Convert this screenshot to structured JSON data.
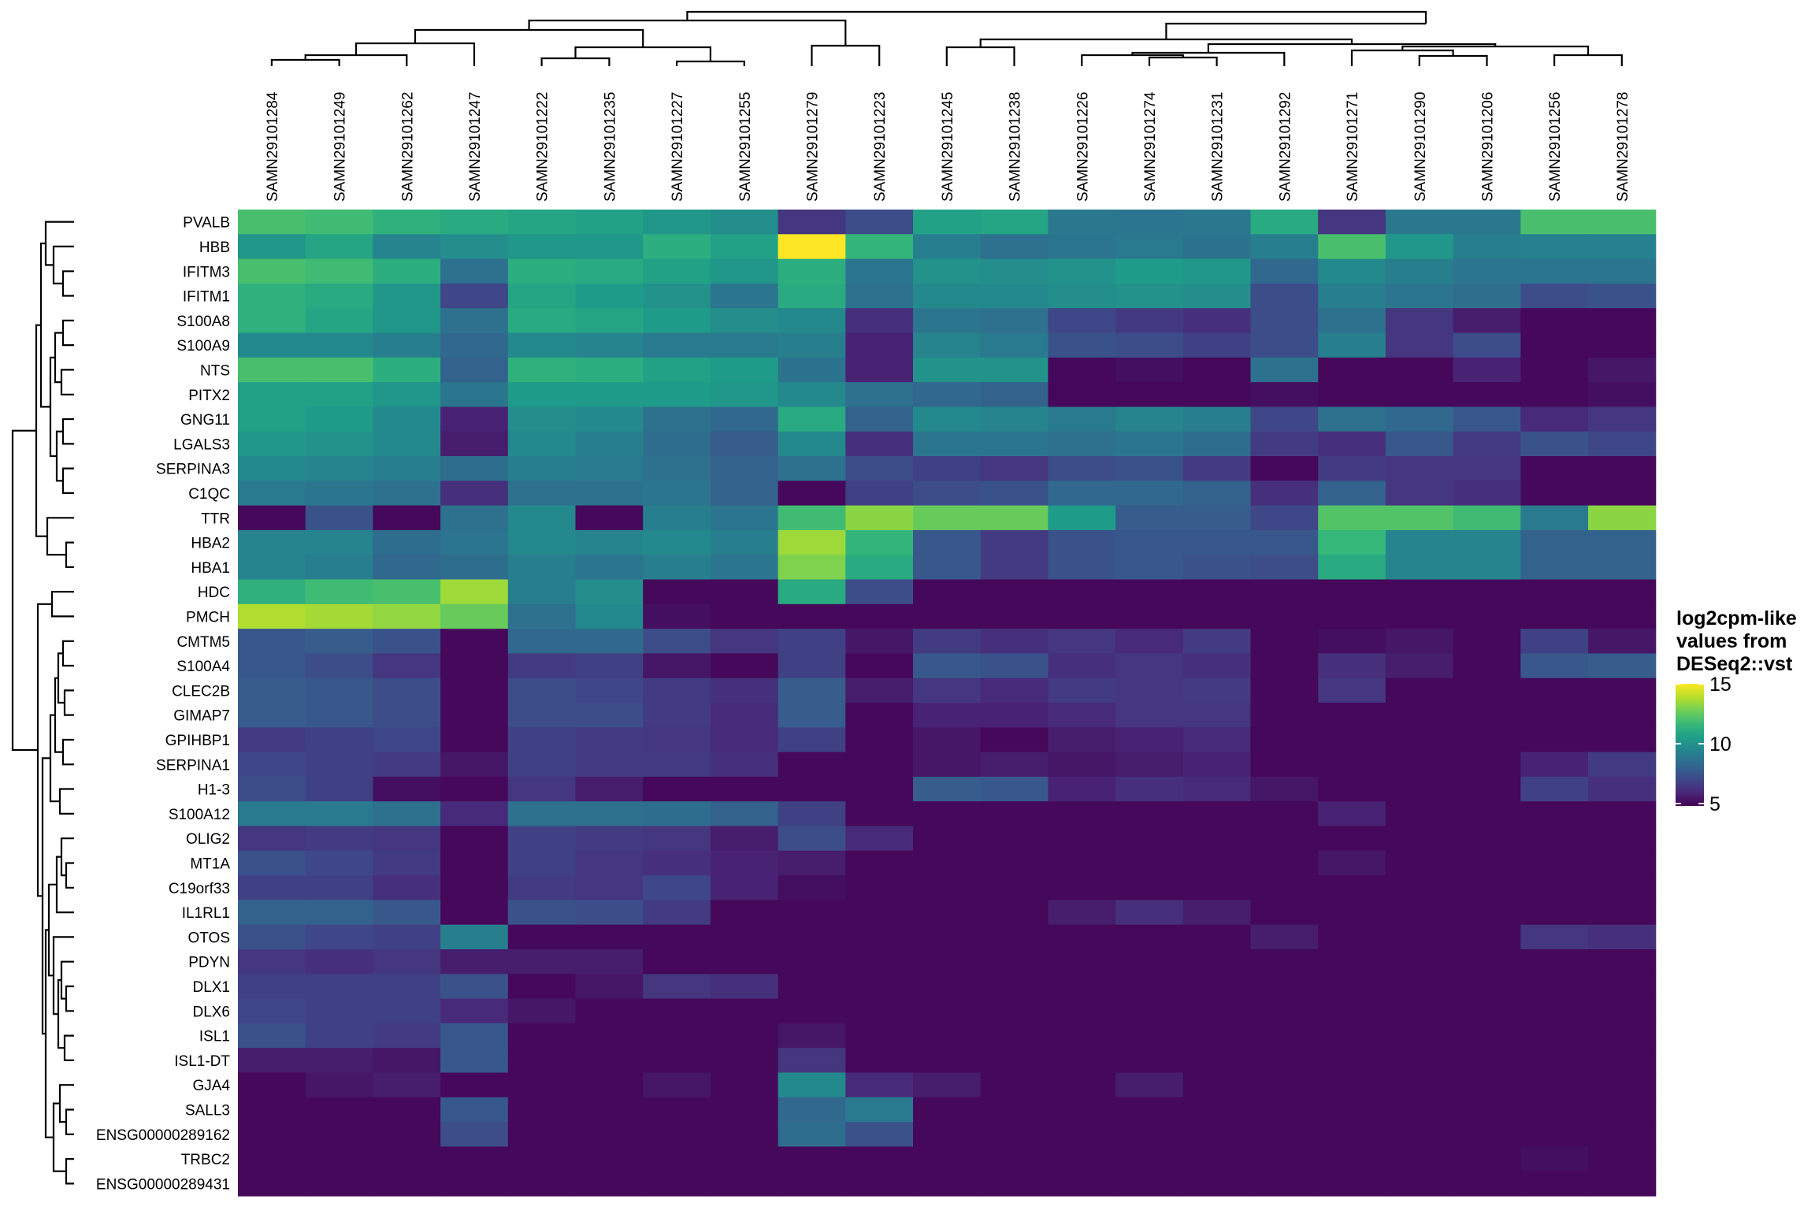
{
  "chart_data": {
    "type": "heatmap",
    "columns": [
      "SAMN29101284",
      "SAMN29101249",
      "SAMN29101262",
      "SAMN29101247",
      "SAMN29101222",
      "SAMN29101235",
      "SAMN29101227",
      "SAMN29101255",
      "SAMN29101279",
      "SAMN29101223",
      "SAMN29101245",
      "SAMN29101238",
      "SAMN29101226",
      "SAMN29101274",
      "SAMN29101231",
      "SAMN29101292",
      "SAMN29101271",
      "SAMN29101290",
      "SAMN29101206",
      "SAMN29101256",
      "SAMN29101278"
    ],
    "rows": [
      "PVALB",
      "HBB",
      "IFITM3",
      "IFITM1",
      "S100A8",
      "S100A9",
      "NTS",
      "PITX2",
      "GNG11",
      "LGALS3",
      "SERPINA3",
      "C1QC",
      "TTR",
      "HBA2",
      "HBA1",
      "HDC",
      "PMCH",
      "CMTM5",
      "S100A4",
      "CLEC2B",
      "GIMAP7",
      "GPIHBP1",
      "SERPINA1",
      "H1-3",
      "S100A12",
      "OLIG2",
      "MT1A",
      "C19orf33",
      "IL1RL1",
      "OTOS",
      "PDYN",
      "DLX1",
      "DLX6",
      "ISL1",
      "ISL1-DT",
      "GJA4",
      "SALL3",
      "ENSG00000289162",
      "TRBC2",
      "ENSG00000289431"
    ],
    "values": [
      [
        12,
        11.8,
        11.3,
        11,
        10.8,
        10.6,
        10.2,
        9.8,
        6.4,
        7.2,
        10.6,
        10.8,
        8.9,
        8.8,
        8.9,
        11,
        6.4,
        8.9,
        8.9,
        12,
        12
      ],
      [
        10.2,
        10.8,
        9.4,
        9.8,
        10.2,
        10.2,
        11.2,
        10.6,
        15,
        11.5,
        9.2,
        8.6,
        8.8,
        9,
        8.7,
        9.2,
        12,
        10.2,
        9.2,
        9.3,
        9.3
      ],
      [
        12,
        11.8,
        11.2,
        8.6,
        11.2,
        11,
        10.6,
        10.2,
        11.2,
        8.8,
        10,
        9.8,
        10,
        10.4,
        10.2,
        8.2,
        9.6,
        9.2,
        8.8,
        8.8,
        8.8
      ],
      [
        11.3,
        11,
        10.2,
        7,
        10.8,
        10.4,
        10,
        8.8,
        11,
        8.6,
        9.6,
        9.6,
        9.8,
        10,
        9.8,
        7.2,
        9.2,
        8.8,
        8.5,
        7.2,
        7.4
      ],
      [
        11.3,
        10.8,
        10.2,
        8.6,
        11,
        10.8,
        10.4,
        9.8,
        9.6,
        6.2,
        8.8,
        8.6,
        7,
        6.5,
        6.2,
        7.2,
        8.6,
        6.4,
        5.6,
        5,
        5
      ],
      [
        9.6,
        9.6,
        9.2,
        8.2,
        9.6,
        9.4,
        9,
        9,
        9.2,
        5.8,
        9.4,
        9,
        7.4,
        7.2,
        6.8,
        7.2,
        9.2,
        6.4,
        7.2,
        5,
        5
      ],
      [
        12,
        12,
        11.2,
        8,
        11.3,
        11.2,
        10.6,
        10.4,
        8.7,
        5.8,
        10,
        10,
        5,
        5.2,
        5,
        8.6,
        5,
        5,
        5.8,
        5,
        5.4
      ],
      [
        10.6,
        10.6,
        10.2,
        8.8,
        10.4,
        10.4,
        10.4,
        10.2,
        9.6,
        8.6,
        8.2,
        8,
        5,
        5,
        5,
        5.2,
        5,
        5,
        5,
        5,
        5.2
      ],
      [
        10.6,
        10.4,
        9.6,
        5.8,
        9.8,
        9.6,
        8.6,
        8.2,
        11,
        8,
        9.6,
        9.4,
        9,
        9.4,
        9.2,
        7,
        8.6,
        8.2,
        7.6,
        6,
        6.4
      ],
      [
        10.2,
        10,
        9.6,
        5.6,
        9.6,
        9.2,
        8.4,
        7.8,
        9.6,
        6.2,
        8.8,
        8.8,
        8.6,
        8.8,
        8.4,
        6.6,
        6.2,
        7.6,
        6.6,
        7.4,
        7
      ],
      [
        9.6,
        9.4,
        9.2,
        8.4,
        9.2,
        9,
        8.6,
        8,
        8.6,
        7.2,
        6.8,
        6.4,
        7.2,
        7.4,
        6.6,
        5,
        6.6,
        6.4,
        6.4,
        5,
        5
      ],
      [
        9,
        8.8,
        8.6,
        6.2,
        8.6,
        8.6,
        8.8,
        8,
        5,
        6.8,
        7.2,
        7.4,
        8.2,
        8.2,
        8,
        6.2,
        8,
        6.4,
        6.2,
        5,
        5
      ],
      [
        5,
        7.4,
        5,
        8.6,
        9.6,
        5,
        9.2,
        8.8,
        11.8,
        13.2,
        12.6,
        12.6,
        10.4,
        7.8,
        7.8,
        7,
        12.2,
        12.2,
        11.8,
        9,
        13.2
      ],
      [
        9.4,
        9.4,
        8.4,
        8.8,
        9.6,
        9.4,
        9.6,
        9.2,
        13.5,
        11.5,
        7.6,
        6.6,
        7.4,
        7.6,
        7.6,
        7.6,
        11.6,
        9.4,
        9.4,
        8,
        8
      ],
      [
        9.4,
        9.2,
        8.2,
        8.4,
        9.2,
        8.8,
        9.2,
        8.8,
        13,
        11,
        7.6,
        6.6,
        7.4,
        7.6,
        7.4,
        7.2,
        11,
        9.4,
        9.4,
        8,
        8
      ],
      [
        11.3,
        11.8,
        12,
        13.5,
        9.2,
        9.8,
        5,
        5,
        11,
        7.2,
        5,
        5,
        5,
        5,
        5,
        5,
        5,
        5,
        5,
        5,
        5
      ],
      [
        13.8,
        13.6,
        13.3,
        12.6,
        8.6,
        9.6,
        5.2,
        5,
        5,
        5,
        5,
        5,
        5,
        5,
        5,
        5,
        5,
        5,
        5,
        5,
        5
      ],
      [
        7.6,
        7.8,
        7.4,
        5,
        8.2,
        8.2,
        7.2,
        6.4,
        6.8,
        5.4,
        6.6,
        6.2,
        6.4,
        6,
        6.6,
        5,
        5.2,
        5.4,
        5,
        6.8,
        5.4
      ],
      [
        7.6,
        7.2,
        6.4,
        5,
        6.6,
        6.8,
        5.4,
        5,
        6.8,
        5,
        7.6,
        7.4,
        6.2,
        6.4,
        6.2,
        5,
        6.2,
        5.6,
        5,
        7.6,
        7.8
      ],
      [
        7.8,
        7.6,
        7.2,
        5,
        7.2,
        7,
        6.6,
        6.2,
        7.8,
        5.6,
        6.4,
        6,
        6.6,
        6.4,
        6.6,
        5,
        6.4,
        5,
        5,
        5,
        5
      ],
      [
        7.8,
        7.6,
        7.2,
        5,
        7.2,
        7.2,
        6.6,
        6,
        7.8,
        5,
        5.8,
        5.8,
        6,
        6.4,
        6.4,
        5,
        5,
        5,
        5,
        5,
        5
      ],
      [
        6.6,
        6.8,
        7,
        5,
        6.8,
        6.6,
        6.4,
        6,
        6.8,
        5,
        5.4,
        5,
        5.6,
        5.8,
        6,
        5,
        5,
        5,
        5,
        5,
        5
      ],
      [
        7,
        6.8,
        6.6,
        5.4,
        6.8,
        6.6,
        6.6,
        6.2,
        5,
        5,
        5.4,
        5.6,
        5.4,
        5.6,
        5.8,
        5,
        5,
        5,
        5,
        5.8,
        6.6
      ],
      [
        7.2,
        6.8,
        5.2,
        5,
        6.4,
        5.6,
        5,
        5,
        5,
        5,
        7.8,
        7.6,
        5.8,
        6.2,
        6,
        5.4,
        5,
        5,
        5,
        6.8,
        6.2
      ],
      [
        9,
        9,
        8.6,
        6,
        8.6,
        8.6,
        8.4,
        8,
        6.8,
        5,
        5,
        5,
        5,
        5,
        5,
        5,
        5.8,
        5,
        5,
        5,
        5
      ],
      [
        6.4,
        6.6,
        6.4,
        5,
        6.8,
        6.6,
        6.4,
        5.6,
        7.2,
        6,
        5,
        5,
        5,
        5,
        5,
        5,
        5,
        5,
        5,
        5,
        5
      ],
      [
        7.4,
        7,
        6.6,
        5,
        6.8,
        6.4,
        6.2,
        5.8,
        5.6,
        5,
        5,
        5,
        5,
        5,
        5,
        5,
        5.4,
        5,
        5,
        5,
        5
      ],
      [
        6.8,
        6.8,
        6.2,
        5,
        6.6,
        6.4,
        7,
        5.8,
        5.2,
        5,
        5,
        5,
        5,
        5,
        5,
        5,
        5,
        5,
        5,
        5,
        5
      ],
      [
        8,
        8,
        7.6,
        5,
        7.4,
        7.2,
        6.6,
        5,
        5,
        5,
        5,
        5,
        5.6,
        6.2,
        5.6,
        5,
        5,
        5,
        5,
        5,
        5
      ],
      [
        7.4,
        7,
        6.8,
        9.2,
        5,
        5,
        5,
        5,
        5,
        5,
        5,
        5,
        5,
        5,
        5,
        5.6,
        5,
        5,
        5,
        6.4,
        6.2
      ],
      [
        6.4,
        6.2,
        6.4,
        5.6,
        5.6,
        5.6,
        5,
        5,
        5,
        5,
        5,
        5,
        5,
        5,
        5,
        5,
        5,
        5,
        5,
        5,
        5
      ],
      [
        6.8,
        6.8,
        6.8,
        7.4,
        5,
        5.4,
        6.4,
        6.2,
        5,
        5,
        5,
        5,
        5,
        5,
        5,
        5,
        5,
        5,
        5,
        5,
        5
      ],
      [
        7,
        6.8,
        6.8,
        6,
        5.4,
        5,
        5,
        5,
        5,
        5,
        5,
        5,
        5,
        5,
        5,
        5,
        5,
        5,
        5,
        5,
        5
      ],
      [
        7.4,
        6.8,
        6.6,
        7.6,
        5,
        5,
        5,
        5,
        5.4,
        5,
        5,
        5,
        5,
        5,
        5,
        5,
        5,
        5,
        5,
        5,
        5
      ],
      [
        5.6,
        5.6,
        5.4,
        7.6,
        5,
        5,
        5,
        5,
        6.4,
        5,
        5,
        5,
        5,
        5,
        5,
        5,
        5,
        5,
        5,
        5,
        5
      ],
      [
        5,
        5.4,
        5.6,
        5,
        5,
        5,
        5.4,
        5,
        9.6,
        6,
        5.6,
        5,
        5,
        5.6,
        5,
        5,
        5,
        5,
        5,
        5,
        5
      ],
      [
        5,
        5,
        5,
        7.6,
        5,
        5,
        5,
        5,
        8.2,
        9,
        5,
        5,
        5,
        5,
        5,
        5,
        5,
        5,
        5,
        5,
        5
      ],
      [
        5,
        5,
        5,
        7.2,
        5,
        5,
        5,
        5,
        8.4,
        7.4,
        5,
        5,
        5,
        5,
        5,
        5,
        5,
        5,
        5,
        5,
        5
      ],
      [
        5,
        5,
        5,
        5,
        5,
        5,
        5,
        5,
        5,
        5,
        5,
        5,
        5,
        5,
        5,
        5,
        5,
        5,
        5,
        5.2,
        5
      ],
      [
        5,
        5,
        5,
        5,
        5,
        5,
        5,
        5,
        5,
        5,
        5,
        5,
        5,
        5,
        5,
        5,
        5,
        5,
        5,
        5,
        5
      ]
    ],
    "color_scale": {
      "name": "viridis",
      "range": [
        4.8,
        15
      ],
      "stops": [
        "#440154",
        "#482878",
        "#3e4989",
        "#31688e",
        "#26828e",
        "#1f9e89",
        "#35b779",
        "#6ece58",
        "#b5de2b",
        "#fde725"
      ]
    },
    "legend": {
      "title_lines": [
        "log2cpm-like",
        "values from",
        "DESeq2::vst"
      ],
      "ticks": [
        15,
        10,
        5
      ]
    },
    "dendrograms": {
      "rows": true,
      "columns": true
    }
  }
}
